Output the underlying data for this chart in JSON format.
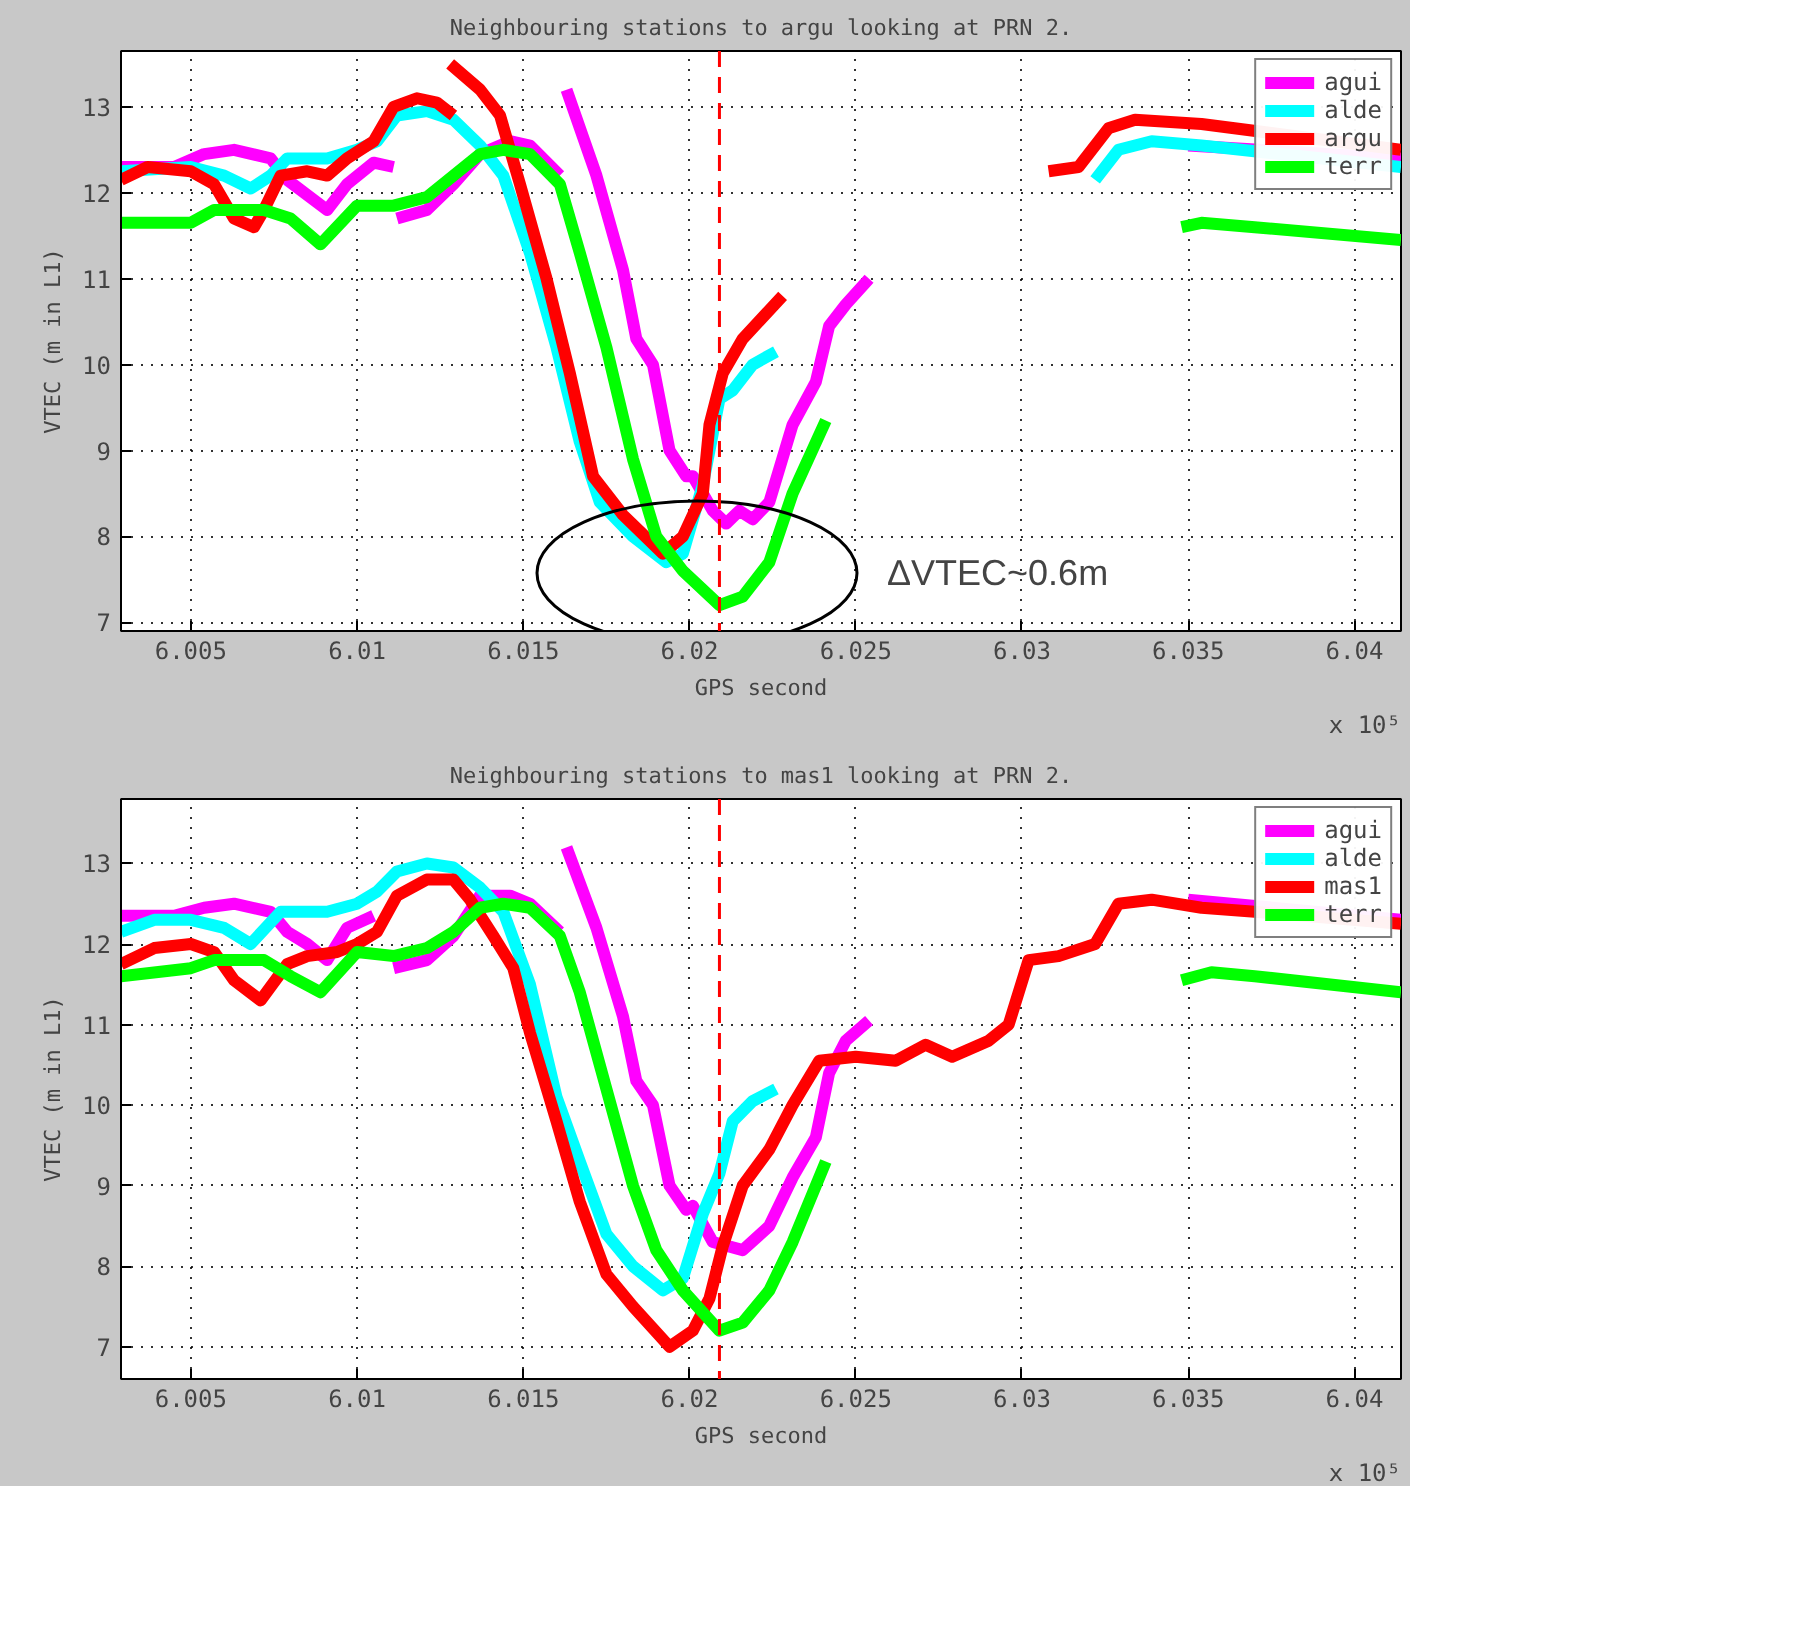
{
  "chart_data": [
    {
      "type": "line",
      "title": "Neighbouring stations to argu looking at PRN 2.",
      "xlabel": "GPS second",
      "ylabel": "VTEC (m in L1)",
      "xlim": [
        6.0029,
        6.0414
      ],
      "ylim": [
        6.9,
        13.65
      ],
      "xticks": [
        6.005,
        6.01,
        6.015,
        6.02,
        6.025,
        6.03,
        6.035,
        6.04
      ],
      "yticks": [
        7,
        8,
        9,
        10,
        11,
        12,
        13
      ],
      "grid": true,
      "legend": "top right",
      "line_style": "solid",
      "ref_lines": [
        {
          "axis": "x",
          "value": 6.0209,
          "color": "#ff0000",
          "line_style": "dashed"
        }
      ],
      "annotations": [
        "ΔVTEC~0.6m",
        "x 10⁵"
      ],
      "series": [
        {
          "name": "agui",
          "color": "#ff00ff",
          "x": [
            6.0029,
            6.0045,
            6.0054,
            6.0063,
            6.0074,
            6.0079,
            6.0091,
            6.0097,
            6.0105,
            6.0111,
            null,
            6.0112,
            6.0121,
            6.0129,
            6.0137,
            6.0146,
            6.0152,
            6.0161,
            null,
            6.0163,
            6.0172,
            6.018,
            6.0184,
            6.0189,
            6.0194,
            6.0199,
            6.0201,
            6.0207,
            6.0211,
            6.0215,
            6.0219,
            6.0224,
            6.0231,
            6.0238,
            6.0242,
            6.0247,
            6.0254,
            null,
            6.035,
            6.0414
          ],
          "values": [
            12.3,
            12.3,
            12.45,
            12.5,
            12.4,
            12.15,
            11.8,
            12.1,
            12.35,
            12.3,
            null,
            11.7,
            11.8,
            12.1,
            12.45,
            12.6,
            12.55,
            12.2,
            null,
            13.2,
            12.2,
            11.1,
            10.3,
            10.0,
            9.0,
            8.7,
            8.7,
            8.3,
            8.15,
            8.3,
            8.2,
            8.4,
            9.3,
            9.8,
            10.45,
            10.7,
            11.0,
            null,
            12.55,
            12.4
          ]
        },
        {
          "name": "alde",
          "color": "#00ffff",
          "x": [
            6.0029,
            6.005,
            6.006,
            6.0068,
            6.0074,
            6.0079,
            6.0091,
            6.01,
            6.0106,
            6.0112,
            6.0121,
            6.0129,
            6.0137,
            6.0144,
            6.0152,
            6.016,
            6.0167,
            6.0173,
            6.0183,
            6.0193,
            6.0198,
            6.0204,
            6.0209,
            6.0213,
            6.0219,
            6.0226,
            null,
            6.0322,
            6.0329,
            6.0339,
            6.0354,
            6.0414
          ],
          "values": [
            12.25,
            12.3,
            12.2,
            12.05,
            12.2,
            12.4,
            12.4,
            12.5,
            12.6,
            12.9,
            12.95,
            12.85,
            12.55,
            12.2,
            11.3,
            10.2,
            9.1,
            8.4,
            8.0,
            7.7,
            7.8,
            8.6,
            9.6,
            9.7,
            10.0,
            10.15,
            null,
            12.15,
            12.5,
            12.6,
            12.55,
            12.3
          ]
        },
        {
          "name": "argu",
          "color": "#ff0000",
          "x": [
            6.0029,
            6.0037,
            6.005,
            6.0057,
            6.0063,
            6.0069,
            6.0072,
            6.0077,
            6.0085,
            6.0091,
            6.0097,
            6.0105,
            6.0111,
            6.0118,
            6.0124,
            6.0129,
            null,
            6.0128,
            6.0137,
            6.0143,
            6.0149,
            6.0157,
            6.0164,
            6.0171,
            6.018,
            6.0192,
            6.0198,
            6.0204,
            6.0206,
            6.021,
            6.0216,
            6.0228,
            null,
            6.0308,
            6.0317,
            6.0326,
            6.0334,
            6.0354,
            6.0414
          ],
          "values": [
            12.15,
            12.3,
            12.25,
            12.1,
            11.7,
            11.6,
            11.8,
            12.2,
            12.25,
            12.2,
            12.4,
            12.6,
            13.0,
            13.1,
            13.05,
            12.9,
            null,
            13.5,
            13.2,
            12.9,
            12.1,
            11.0,
            9.9,
            8.7,
            8.25,
            7.8,
            8.0,
            8.5,
            9.3,
            9.9,
            10.3,
            10.8,
            null,
            12.25,
            12.3,
            12.75,
            12.85,
            12.8,
            12.5
          ]
        },
        {
          "name": "terr",
          "color": "#00ff00",
          "x": [
            6.0029,
            6.005,
            6.0057,
            6.0072,
            6.008,
            6.0089,
            6.01,
            6.0111,
            6.0121,
            6.0129,
            6.0137,
            6.0144,
            6.0152,
            6.0161,
            6.0167,
            6.0175,
            6.0183,
            6.019,
            6.0198,
            6.0209,
            6.0216,
            6.0224,
            6.0231,
            6.0241,
            null,
            6.0348,
            6.0354,
            6.037,
            6.0414
          ],
          "values": [
            11.65,
            11.65,
            11.8,
            11.8,
            11.7,
            11.4,
            11.85,
            11.85,
            11.95,
            12.2,
            12.45,
            12.5,
            12.45,
            12.1,
            11.3,
            10.2,
            8.9,
            8.0,
            7.6,
            7.2,
            7.3,
            7.7,
            8.5,
            9.35,
            null,
            11.6,
            11.65,
            11.6,
            11.45
          ]
        }
      ]
    },
    {
      "type": "line",
      "title": "Neighbouring stations to mas1 looking at PRN 2.",
      "xlabel": "GPS second",
      "ylabel": "VTEC (m in L1)",
      "xlim": [
        6.0029,
        6.0414
      ],
      "ylim": [
        6.6,
        13.8
      ],
      "xticks": [
        6.005,
        6.01,
        6.015,
        6.02,
        6.025,
        6.03,
        6.035,
        6.04
      ],
      "yticks": [
        7,
        8,
        9,
        10,
        11,
        12,
        13
      ],
      "grid": true,
      "legend": "top right",
      "line_style": "solid",
      "ref_lines": [
        {
          "axis": "x",
          "value": 6.0209,
          "color": "#ff0000",
          "line_style": "dashed"
        }
      ],
      "annotations": [
        "x 10⁵"
      ],
      "series": [
        {
          "name": "agui",
          "color": "#ff00ff",
          "x": [
            6.0029,
            6.0045,
            6.0054,
            6.0063,
            6.0074,
            6.0079,
            6.0085,
            6.0091,
            6.0097,
            6.0105,
            null,
            6.0111,
            6.0121,
            6.0129,
            6.0137,
            6.0146,
            6.0152,
            6.0161,
            null,
            6.0163,
            6.0172,
            6.018,
            6.0184,
            6.0189,
            6.0194,
            6.0199,
            6.0201,
            6.0207,
            6.0216,
            6.0224,
            6.0231,
            6.0238,
            6.0242,
            6.0247,
            6.0254,
            null,
            6.035,
            6.0414
          ],
          "values": [
            12.35,
            12.35,
            12.45,
            12.5,
            12.4,
            12.15,
            12.0,
            11.8,
            12.2,
            12.35,
            null,
            11.7,
            11.8,
            12.1,
            12.6,
            12.6,
            12.5,
            12.15,
            null,
            13.2,
            12.2,
            11.1,
            10.3,
            10.0,
            9.0,
            8.7,
            8.75,
            8.3,
            8.2,
            8.5,
            9.1,
            9.6,
            10.4,
            10.8,
            11.05,
            null,
            12.55,
            12.3
          ]
        },
        {
          "name": "alde",
          "color": "#00ffff",
          "x": [
            6.0029,
            6.0039,
            6.005,
            6.006,
            6.0068,
            6.0077,
            6.0091,
            6.01,
            6.0106,
            6.0112,
            6.0121,
            6.0129,
            6.0137,
            6.0144,
            6.0152,
            6.016,
            6.0167,
            6.0175,
            6.0183,
            6.0192,
            6.0198,
            6.0204,
            6.0209,
            6.0213,
            6.0219,
            6.0226
          ],
          "values": [
            12.15,
            12.3,
            12.3,
            12.2,
            12.0,
            12.4,
            12.4,
            12.5,
            12.65,
            12.9,
            13.0,
            12.95,
            12.7,
            12.4,
            11.5,
            10.1,
            9.3,
            8.4,
            8.0,
            7.7,
            7.85,
            8.65,
            9.15,
            9.8,
            10.05,
            10.2
          ]
        },
        {
          "name": "mas1",
          "color": "#ff0000",
          "x": [
            6.0029,
            6.0039,
            6.005,
            6.0057,
            6.0063,
            6.0071,
            6.0079,
            6.0085,
            6.0094,
            6.01,
            6.0106,
            6.0112,
            6.0121,
            6.0129,
            6.0134,
            6.0141,
            6.0147,
            6.0152,
            6.016,
            6.0167,
            6.0175,
            6.0183,
            6.0194,
            6.0201,
            6.0206,
            6.021,
            6.0216,
            6.0224,
            6.0231,
            6.0239,
            6.025,
            6.0262,
            6.0271,
            6.0279,
            6.029,
            6.0296,
            6.0302,
            6.0311,
            6.0322,
            6.0329,
            6.0339,
            6.0354,
            6.037,
            6.0414
          ],
          "values": [
            11.75,
            11.95,
            12.0,
            11.9,
            11.55,
            11.3,
            11.75,
            11.85,
            11.9,
            12.0,
            12.15,
            12.6,
            12.8,
            12.8,
            12.55,
            12.1,
            11.7,
            10.9,
            9.8,
            8.8,
            7.9,
            7.5,
            7.0,
            7.2,
            7.6,
            8.25,
            9.0,
            9.45,
            10.0,
            10.55,
            10.6,
            10.55,
            10.75,
            10.6,
            10.8,
            11.0,
            11.8,
            11.85,
            12.0,
            12.5,
            12.55,
            12.45,
            12.4,
            12.25
          ]
        },
        {
          "name": "terr",
          "color": "#00ff00",
          "x": [
            6.0029,
            6.005,
            6.0057,
            6.0072,
            6.008,
            6.0089,
            6.01,
            6.0111,
            6.0121,
            6.0129,
            6.0137,
            6.0144,
            6.0152,
            6.0161,
            6.0167,
            6.0175,
            6.0183,
            6.019,
            6.0198,
            6.0209,
            6.0216,
            6.0224,
            6.0231,
            6.0241,
            null,
            6.0348,
            6.0357,
            6.037,
            6.0414
          ],
          "values": [
            11.6,
            11.7,
            11.8,
            11.8,
            11.6,
            11.4,
            11.9,
            11.85,
            11.95,
            12.15,
            12.45,
            12.5,
            12.45,
            12.1,
            11.4,
            10.2,
            9.0,
            8.2,
            7.7,
            7.2,
            7.3,
            7.7,
            8.3,
            9.3,
            null,
            11.55,
            11.65,
            11.6,
            11.4
          ]
        }
      ]
    }
  ]
}
